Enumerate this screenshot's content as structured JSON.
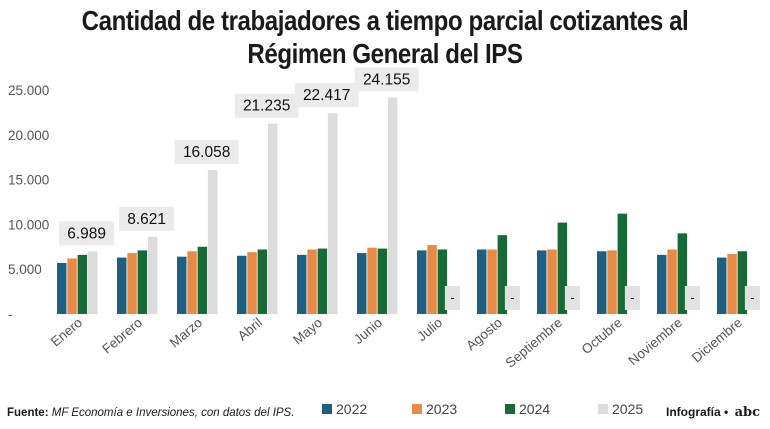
{
  "chart_data": {
    "type": "bar",
    "title": "Cantidad de trabajadores a tiempo parcial cotizantes al Régimen General del IPS",
    "title_lines": [
      "Cantidad de trabajadores a tiempo parcial cotizantes al",
      "Régimen General del IPS"
    ],
    "categories": [
      "Enero",
      "Febrero",
      "Marzo",
      "Abril",
      "Mayo",
      "Junio",
      "Julio",
      "Agosto",
      "Septiembre",
      "Octubre",
      "Noviembre",
      "Diciembre"
    ],
    "series": [
      {
        "name": "2022",
        "color": "#1f5f7f",
        "values": [
          5700,
          6300,
          6400,
          6500,
          6600,
          6800,
          7100,
          7200,
          7100,
          7000,
          6600,
          6300
        ]
      },
      {
        "name": "2023",
        "color": "#e98b48",
        "values": [
          6200,
          6800,
          7000,
          6900,
          7200,
          7400,
          7700,
          7200,
          7200,
          7100,
          7200,
          6700
        ]
      },
      {
        "name": "2024",
        "color": "#176a37",
        "values": [
          6600,
          7100,
          7500,
          7200,
          7300,
          7300,
          7200,
          8800,
          10200,
          11200,
          9000,
          7000
        ]
      },
      {
        "name": "2025",
        "color": "#dcdcdc",
        "values": [
          6989,
          8621,
          16058,
          21235,
          22417,
          24155,
          null,
          null,
          null,
          null,
          null,
          null
        ]
      }
    ],
    "data_labels": [
      "6.989",
      "8.621",
      "16.058",
      "21.235",
      "22.417",
      "24.155",
      "-",
      "-",
      "-",
      "-",
      "-",
      "-"
    ],
    "yticks": [
      0,
      5000,
      10000,
      15000,
      20000,
      25000
    ],
    "ytick_labels": [
      "-",
      "5.000",
      "10.000",
      "15.000",
      "20.000",
      "25.000"
    ],
    "ylim": [
      0,
      25000
    ],
    "xlabel": "",
    "ylabel": "",
    "grid": false,
    "legend_position": "bottom"
  },
  "footer": {
    "source_label": "Fuente:",
    "source_text": "MF Economía e Inversiones, con datos del IPS.",
    "credit": "Infografía",
    "logo": "abc"
  }
}
